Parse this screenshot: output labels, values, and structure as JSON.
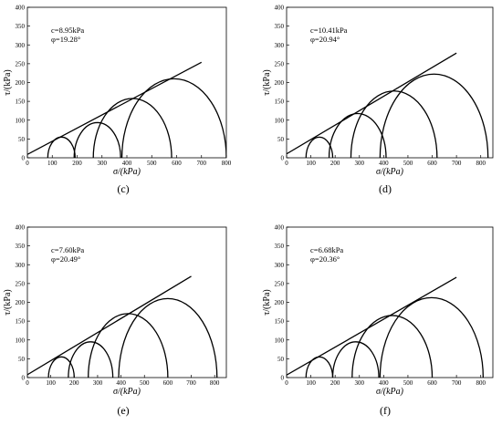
{
  "chart_data": [
    {
      "type": "line",
      "panel_label": "(c)",
      "xlabel": "σ/(kPa)",
      "ylabel": "τ/(kPa)",
      "xlim": [
        0,
        800
      ],
      "ylim": [
        0,
        400
      ],
      "xticks": [
        0,
        100,
        200,
        300,
        400,
        500,
        600,
        700,
        800
      ],
      "yticks": [
        0,
        50,
        100,
        150,
        200,
        250,
        300,
        350,
        400
      ],
      "annotations": [
        "c=8.95kPa",
        "φ=19.28°"
      ],
      "cohesion_kPa": 8.95,
      "friction_angle_deg": 19.28,
      "envelope_x_range": [
        0,
        700
      ],
      "circles": [
        {
          "sigma3": 82,
          "sigma1": 192
        },
        {
          "sigma3": 188,
          "sigma1": 375
        },
        {
          "sigma3": 265,
          "sigma1": 580
        },
        {
          "sigma3": 380,
          "sigma1": 800
        }
      ]
    },
    {
      "type": "line",
      "panel_label": "(d)",
      "xlabel": "σ/(kPa)",
      "ylabel": "τ/(kPa)",
      "xlim": [
        0,
        850
      ],
      "ylim": [
        0,
        400
      ],
      "xticks": [
        0,
        100,
        200,
        300,
        400,
        500,
        600,
        700,
        800
      ],
      "yticks": [
        0,
        50,
        100,
        150,
        200,
        250,
        300,
        350,
        400
      ],
      "annotations": [
        "c=10.41kPa",
        "φ=20.94°"
      ],
      "cohesion_kPa": 10.41,
      "friction_angle_deg": 20.94,
      "envelope_x_range": [
        0,
        700
      ],
      "circles": [
        {
          "sigma3": 80,
          "sigma1": 190
        },
        {
          "sigma3": 175,
          "sigma1": 410
        },
        {
          "sigma3": 265,
          "sigma1": 620
        },
        {
          "sigma3": 385,
          "sigma1": 830
        }
      ]
    },
    {
      "type": "line",
      "panel_label": "(e)",
      "xlabel": "σ/(kPa)",
      "ylabel": "τ/(kPa)",
      "xlim": [
        0,
        850
      ],
      "ylim": [
        0,
        400
      ],
      "xticks": [
        0,
        100,
        200,
        300,
        400,
        500,
        600,
        700,
        800
      ],
      "yticks": [
        0,
        50,
        100,
        150,
        200,
        250,
        300,
        350,
        400
      ],
      "annotations": [
        "c=7.60kPa",
        "φ=20.49°"
      ],
      "cohesion_kPa": 7.6,
      "friction_angle_deg": 20.49,
      "envelope_x_range": [
        0,
        700
      ],
      "circles": [
        {
          "sigma3": 90,
          "sigma1": 200
        },
        {
          "sigma3": 175,
          "sigma1": 365
        },
        {
          "sigma3": 260,
          "sigma1": 600
        },
        {
          "sigma3": 390,
          "sigma1": 810
        }
      ]
    },
    {
      "type": "line",
      "panel_label": "(f)",
      "xlabel": "σ/(kPa)",
      "ylabel": "τ/(kPa)",
      "xlim": [
        0,
        850
      ],
      "ylim": [
        0,
        400
      ],
      "xticks": [
        0,
        100,
        200,
        300,
        400,
        500,
        600,
        700,
        800
      ],
      "yticks": [
        0,
        50,
        100,
        150,
        200,
        250,
        300,
        350,
        400
      ],
      "annotations": [
        "c=6.68kPa",
        "φ=20.36°"
      ],
      "cohesion_kPa": 6.68,
      "friction_angle_deg": 20.36,
      "envelope_x_range": [
        0,
        700
      ],
      "circles": [
        {
          "sigma3": 80,
          "sigma1": 190
        },
        {
          "sigma3": 190,
          "sigma1": 380
        },
        {
          "sigma3": 270,
          "sigma1": 600
        },
        {
          "sigma3": 385,
          "sigma1": 810
        }
      ]
    }
  ]
}
